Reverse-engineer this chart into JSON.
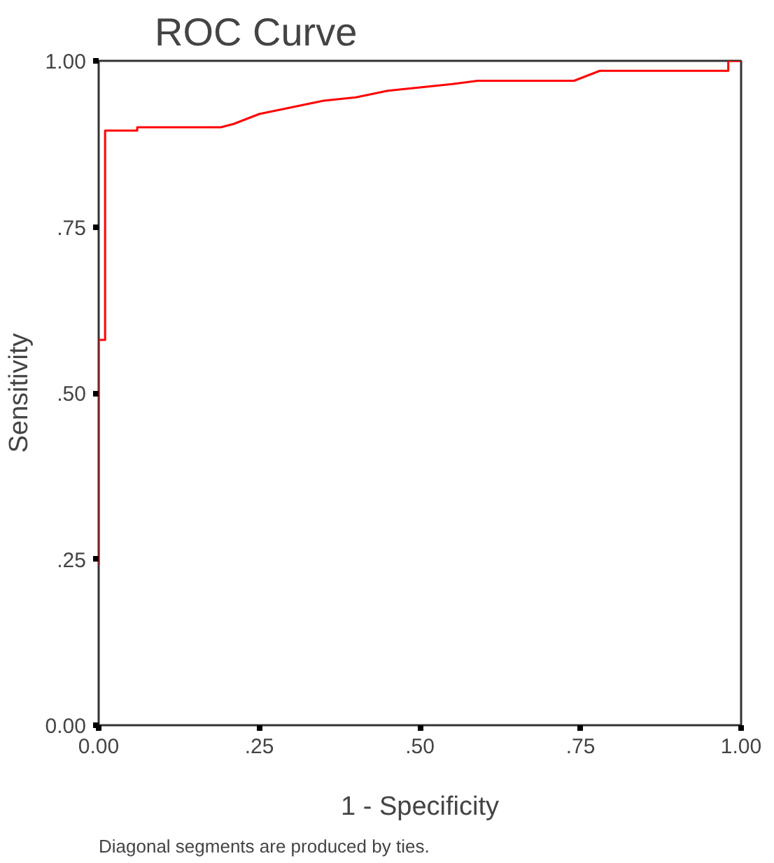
{
  "chart_data": {
    "type": "line",
    "title": "ROC Curve",
    "xlabel": "1 - Specificity",
    "ylabel": "Sensitivity",
    "annotations": [
      "Diagonal segments are produced by ties."
    ],
    "xlim": [
      0,
      1
    ],
    "ylim": [
      0,
      1
    ],
    "xticks": [
      {
        "value": 0,
        "label": "0.00"
      },
      {
        "value": 0.25,
        "label": ".25"
      },
      {
        "value": 0.5,
        "label": ".50"
      },
      {
        "value": 0.75,
        "label": ".75"
      },
      {
        "value": 1,
        "label": "1.00"
      }
    ],
    "yticks": [
      {
        "value": 0,
        "label": "0.00"
      },
      {
        "value": 0.25,
        "label": ".25"
      },
      {
        "value": 0.5,
        "label": ".50"
      },
      {
        "value": 0.75,
        "label": ".75"
      },
      {
        "value": 1,
        "label": "1.00"
      }
    ],
    "grid": false,
    "series": [
      {
        "color": "#ff0000",
        "x": [
          0,
          0,
          0.01,
          0.01,
          0.06,
          0.06,
          0.19,
          0.21,
          0.25,
          0.3,
          0.35,
          0.4,
          0.45,
          0.5,
          0.55,
          0.59,
          0.74,
          0.78,
          0.98,
          0.98,
          1.0
        ],
        "values": [
          0.24,
          0.58,
          0.58,
          0.895,
          0.895,
          0.9,
          0.9,
          0.905,
          0.92,
          0.93,
          0.94,
          0.945,
          0.955,
          0.96,
          0.965,
          0.97,
          0.97,
          0.985,
          0.985,
          1.0,
          1.0
        ]
      }
    ]
  }
}
